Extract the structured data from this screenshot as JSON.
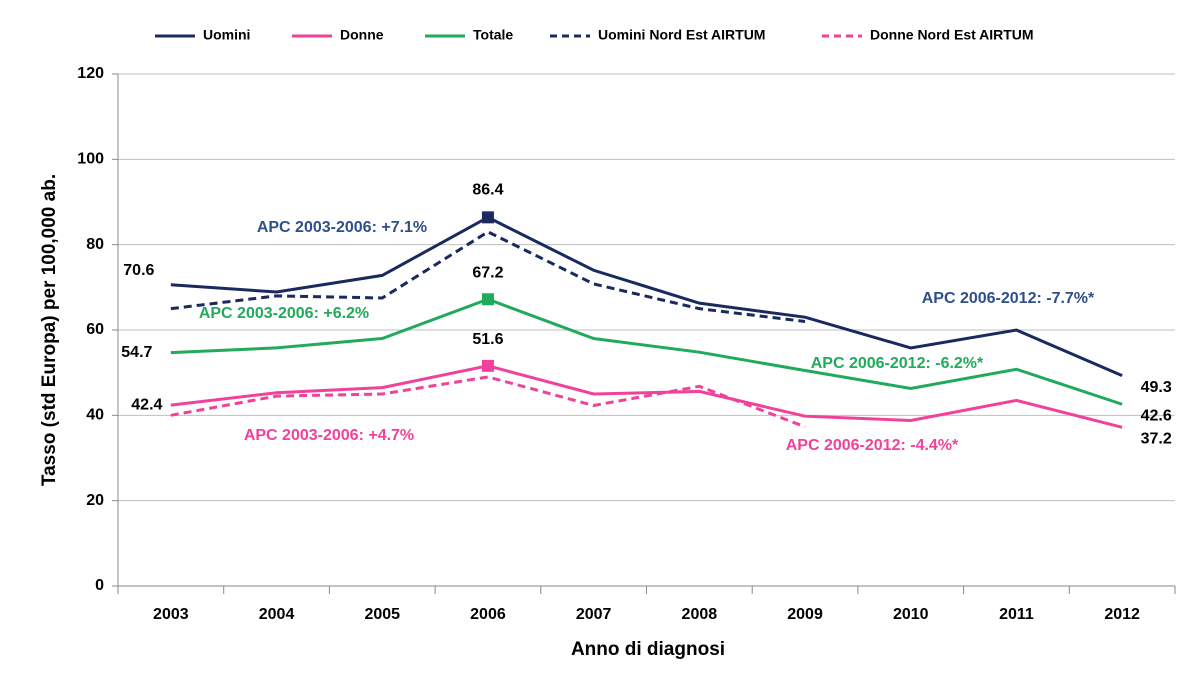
{
  "chart_data": {
    "type": "line",
    "x_label": "Anno di diagnosi",
    "y_label": "Tasso (std Europa) per 100,000 ab.",
    "categories": [
      "2003",
      "2004",
      "2005",
      "2006",
      "2007",
      "2008",
      "2009",
      "2010",
      "2011",
      "2012"
    ],
    "series": [
      {
        "name": "Uomini",
        "color": "#1b2a5e",
        "dashed": false,
        "values": [
          70.6,
          68.9,
          72.8,
          86.4,
          74.0,
          66.3,
          63.0,
          55.8,
          60.0,
          49.3
        ]
      },
      {
        "name": "Donne",
        "color": "#f0429a",
        "dashed": false,
        "values": [
          42.4,
          45.3,
          46.5,
          51.6,
          45.0,
          45.6,
          39.8,
          38.8,
          43.5,
          37.2
        ]
      },
      {
        "name": "Totale",
        "color": "#22aa5c",
        "dashed": false,
        "values": [
          54.7,
          55.8,
          58.0,
          67.2,
          58.0,
          54.8,
          50.5,
          46.3,
          50.8,
          42.6
        ]
      },
      {
        "name": "Uomini Nord Est AIRTUM",
        "color": "#1b2a5e",
        "dashed": true,
        "values": [
          65.0,
          68.0,
          67.5,
          83.0,
          70.8,
          65.0,
          62.0,
          null,
          null,
          null
        ]
      },
      {
        "name": "Donne Nord Est AIRTUM",
        "color": "#f0429a",
        "dashed": true,
        "values": [
          40.0,
          44.5,
          45.0,
          49.0,
          42.3,
          46.8,
          37.3,
          null,
          null,
          null
        ]
      }
    ],
    "ylim": [
      0,
      120
    ],
    "yticks": [
      0,
      20,
      40,
      60,
      80,
      100,
      120
    ],
    "grid": true,
    "annotations": [
      {
        "text": "APC 2003-2006: +7.1%",
        "color": "#2e4f8a"
      },
      {
        "text": "APC 2003-2006: +6.2%",
        "color": "#22aa5c"
      },
      {
        "text": "APC 2003-2006: +4.7%",
        "color": "#f0429a"
      },
      {
        "text": "APC 2006-2012: -7.7%*",
        "color": "#2e4f8a"
      },
      {
        "text": "APC 2006-2012: -6.2%*",
        "color": "#22aa5c"
      },
      {
        "text": "APC 2006-2012: -4.4%*",
        "color": "#f0429a"
      }
    ]
  }
}
